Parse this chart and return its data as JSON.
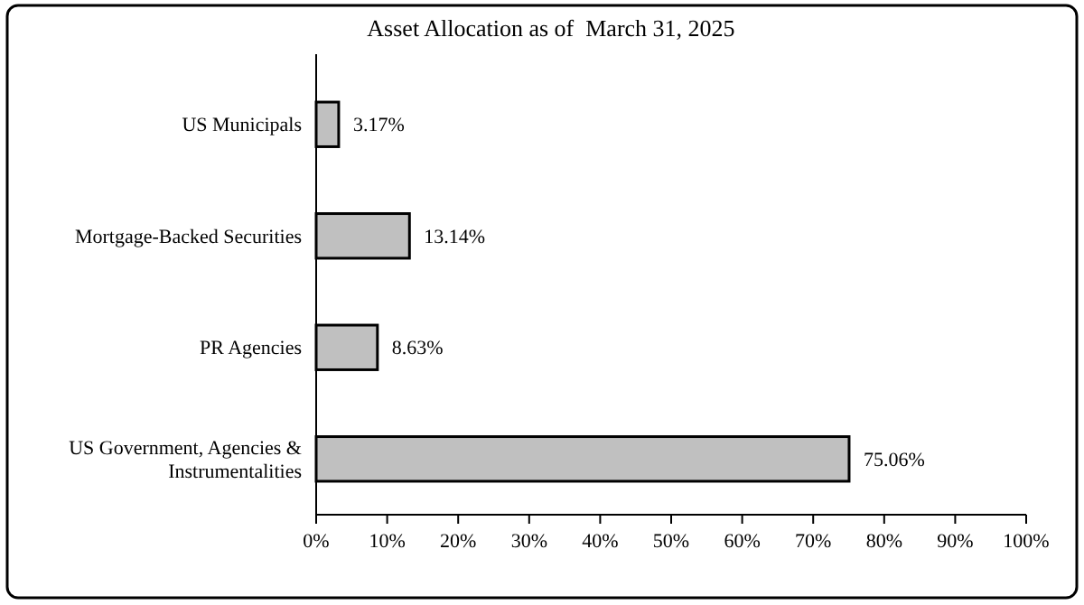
{
  "chart_data": {
    "type": "bar",
    "orientation": "horizontal",
    "title": "Asset Allocation as of  March 31, 2025",
    "categories": [
      "US Municipals",
      "Mortgage-Backed Securities",
      "PR Agencies",
      "US Government, Agencies & Instrumentalities"
    ],
    "values": [
      3.17,
      13.14,
      8.63,
      75.06
    ],
    "value_labels": [
      "3.17%",
      "13.14%",
      "8.63%",
      "75.06%"
    ],
    "color": "#c0c0c0",
    "xlim": [
      0,
      100
    ],
    "xticks": [
      {
        "value": 0,
        "label": "0%"
      },
      {
        "value": 10,
        "label": "10%"
      },
      {
        "value": 20,
        "label": "20%"
      },
      {
        "value": 30,
        "label": "30%"
      },
      {
        "value": 40,
        "label": "40%"
      },
      {
        "value": 50,
        "label": "50%"
      },
      {
        "value": 60,
        "label": "60%"
      },
      {
        "value": 70,
        "label": "70%"
      },
      {
        "value": 80,
        "label": "80%"
      },
      {
        "value": 90,
        "label": "90%"
      },
      {
        "value": 100,
        "label": "100%"
      }
    ],
    "grid": false
  }
}
